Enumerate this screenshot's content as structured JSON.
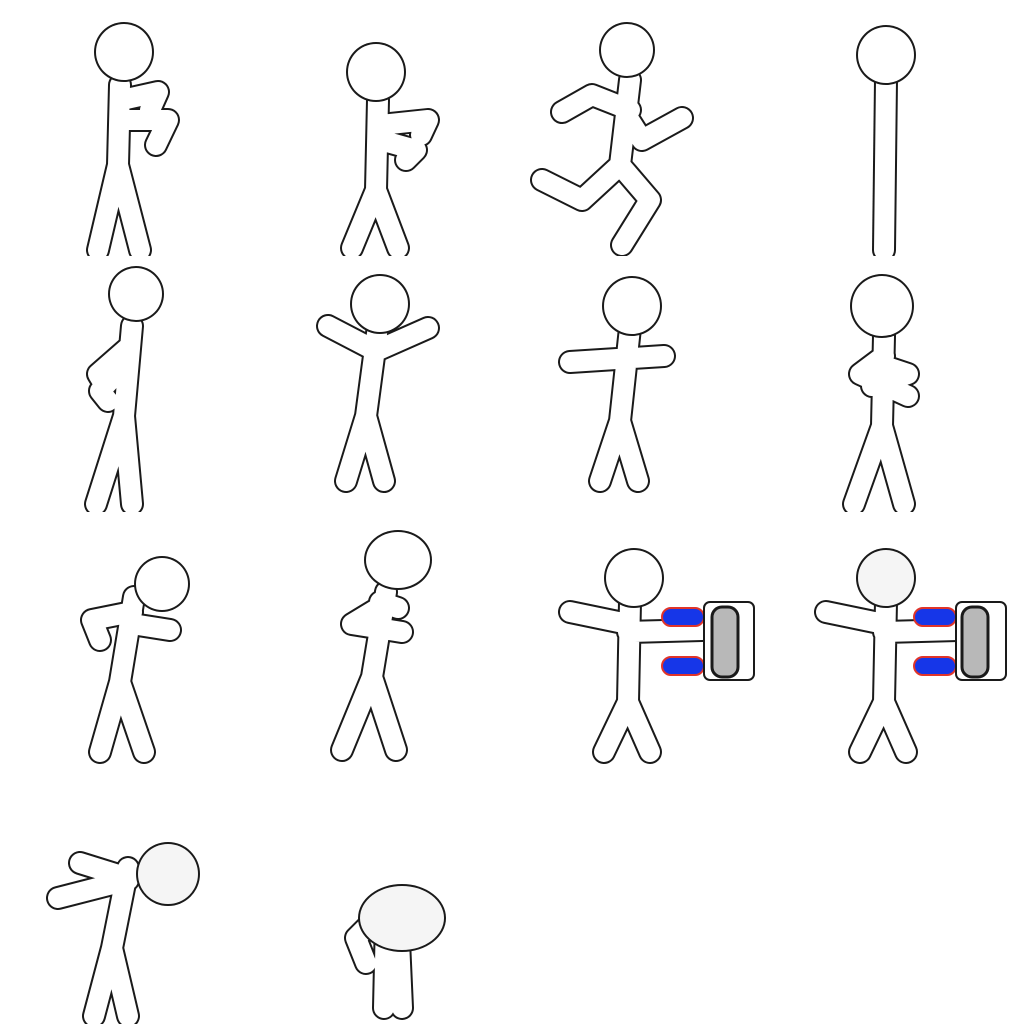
{
  "sprite_sheet": {
    "columns": 4,
    "rows": 4,
    "frames": [
      {
        "pose": "guard-arms-bent"
      },
      {
        "pose": "guard-arms-bent-low"
      },
      {
        "pose": "running"
      },
      {
        "pose": "standing-straight"
      },
      {
        "pose": "side-lean"
      },
      {
        "pose": "arms-raised"
      },
      {
        "pose": "arms-out"
      },
      {
        "pose": "arms-crossed"
      },
      {
        "pose": "crouch-punch"
      },
      {
        "pose": "tilted-guard"
      },
      {
        "pose": "fireball-cast"
      },
      {
        "pose": "fireball-cast-faded"
      },
      {
        "pose": "knocked-back"
      },
      {
        "pose": "collapsed"
      }
    ],
    "colors": {
      "outline": "#1a1a1a",
      "body": "#ffffff",
      "projectile_fill": "#1636e8",
      "projectile_edge": "#e0342a",
      "block_fill": "#b8b8b8"
    }
  }
}
